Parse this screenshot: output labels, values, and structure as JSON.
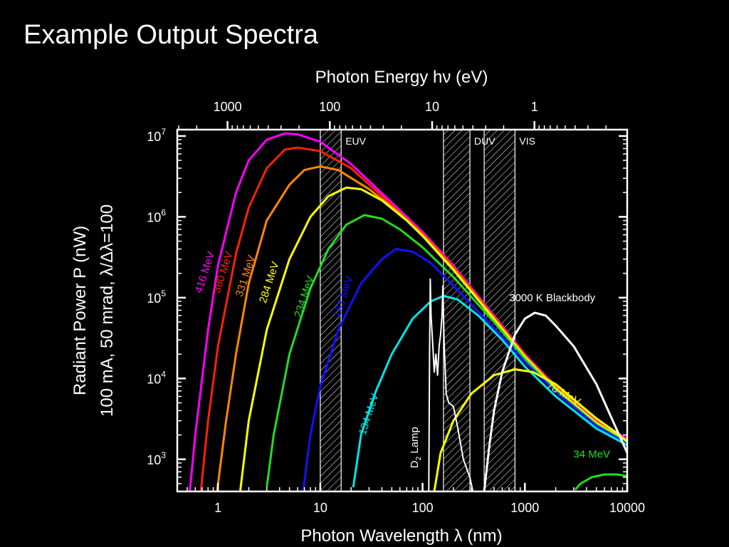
{
  "slide": {
    "title": "Example Output Spectra"
  },
  "chart_data": {
    "type": "line",
    "title": "",
    "xlabel": "Photon Wavelength λ (nm)",
    "x2label": "Photon Energy hν (eV)",
    "ylabel_line1": "Radiant Power P (nW)",
    "ylabel_line2": "100 mA, 50 mrad, λ/Δλ=100",
    "xscale": "log",
    "yscale": "log",
    "xlim": [
      0.4,
      10000
    ],
    "ylim": [
      400,
      12000000
    ],
    "x_ticks": [
      {
        "value": 1,
        "label": "1"
      },
      {
        "value": 10,
        "label": "10"
      },
      {
        "value": 100,
        "label": "100"
      },
      {
        "value": 1000,
        "label": "1000"
      },
      {
        "value": 10000,
        "label": "10000"
      }
    ],
    "x2_ticks": [
      {
        "value": 1000,
        "label": "1000"
      },
      {
        "value": 100,
        "label": "100"
      },
      {
        "value": 10,
        "label": "10"
      },
      {
        "value": 1,
        "label": "1"
      }
    ],
    "y_ticks": [
      {
        "value": 1000,
        "base": "10",
        "exp": "3"
      },
      {
        "value": 10000,
        "base": "10",
        "exp": "4"
      },
      {
        "value": 100000,
        "base": "10",
        "exp": "5"
      },
      {
        "value": 1000000,
        "base": "10",
        "exp": "6"
      },
      {
        "value": 10000000,
        "base": "10",
        "exp": "7"
      }
    ],
    "bands": [
      {
        "name": "EUV",
        "from": 10,
        "to": 16
      },
      {
        "name": "DUV",
        "from": 160,
        "to": 290
      },
      {
        "name": "VIS",
        "from": 400,
        "to": 800
      }
    ],
    "series": [
      {
        "name": "416 MeV",
        "color": "#ff00ff",
        "points": [
          [
            0.53,
            400
          ],
          [
            0.6,
            2000
          ],
          [
            0.8,
            40000
          ],
          [
            1,
            250000
          ],
          [
            1.5,
            2000000
          ],
          [
            2,
            5000000
          ],
          [
            3,
            9000000
          ],
          [
            4.5,
            10800000
          ],
          [
            6,
            10500000
          ],
          [
            10,
            8500000
          ],
          [
            20,
            4500000
          ],
          [
            50,
            1500000
          ],
          [
            100,
            650000
          ],
          [
            200,
            250000
          ],
          [
            500,
            60000
          ],
          [
            1000,
            20000
          ],
          [
            2000,
            8000
          ],
          [
            5000,
            3000
          ],
          [
            10000,
            1800
          ]
        ]
      },
      {
        "name": "380 MeV",
        "color": "#ff2200",
        "points": [
          [
            0.68,
            400
          ],
          [
            0.8,
            3000
          ],
          [
            1,
            25000
          ],
          [
            1.5,
            350000
          ],
          [
            2,
            1300000
          ],
          [
            3,
            4000000
          ],
          [
            4.5,
            6800000
          ],
          [
            6,
            7200000
          ],
          [
            10,
            6500000
          ],
          [
            20,
            4000000
          ],
          [
            50,
            1400000
          ],
          [
            100,
            620000
          ],
          [
            200,
            240000
          ],
          [
            500,
            58000
          ],
          [
            1000,
            19500
          ],
          [
            2000,
            7800
          ],
          [
            5000,
            2900
          ],
          [
            10000,
            1750
          ]
        ]
      },
      {
        "name": "331 MeV",
        "color": "#ff8800",
        "points": [
          [
            0.98,
            400
          ],
          [
            1.2,
            3000
          ],
          [
            1.5,
            20000
          ],
          [
            2,
            150000
          ],
          [
            3,
            900000
          ],
          [
            5,
            2500000
          ],
          [
            7,
            3800000
          ],
          [
            10,
            4200000
          ],
          [
            15,
            3800000
          ],
          [
            30,
            2200000
          ],
          [
            60,
            1100000
          ],
          [
            100,
            600000
          ],
          [
            200,
            230000
          ],
          [
            500,
            56000
          ],
          [
            1000,
            19000
          ],
          [
            2000,
            7600
          ],
          [
            5000,
            2850
          ],
          [
            10000,
            1700
          ]
        ]
      },
      {
        "name": "284 MeV",
        "color": "#ffff00",
        "points": [
          [
            1.65,
            400
          ],
          [
            2,
            3000
          ],
          [
            3,
            40000
          ],
          [
            5,
            300000
          ],
          [
            8,
            1000000
          ],
          [
            12,
            1800000
          ],
          [
            18,
            2300000
          ],
          [
            25,
            2200000
          ],
          [
            40,
            1600000
          ],
          [
            70,
            900000
          ],
          [
            100,
            580000
          ],
          [
            200,
            220000
          ],
          [
            500,
            54000
          ],
          [
            1000,
            18500
          ],
          [
            2000,
            7400
          ],
          [
            5000,
            2800
          ],
          [
            10000,
            1650
          ]
        ]
      },
      {
        "name": "234 MeV",
        "color": "#22dd22",
        "points": [
          [
            3,
            450
          ],
          [
            3.5,
            2000
          ],
          [
            5,
            20000
          ],
          [
            8,
            130000
          ],
          [
            12,
            400000
          ],
          [
            18,
            800000
          ],
          [
            27,
            1050000
          ],
          [
            40,
            950000
          ],
          [
            60,
            700000
          ],
          [
            100,
            420000
          ],
          [
            200,
            180000
          ],
          [
            500,
            50000
          ],
          [
            1000,
            17500
          ],
          [
            2000,
            7100
          ],
          [
            5000,
            2700
          ],
          [
            10000,
            1600
          ]
        ]
      },
      {
        "name": "183 MeV",
        "color": "#1111ff",
        "points": [
          [
            6.8,
            400
          ],
          [
            8,
            2000
          ],
          [
            10,
            8000
          ],
          [
            15,
            40000
          ],
          [
            25,
            150000
          ],
          [
            40,
            300000
          ],
          [
            55,
            400000
          ],
          [
            80,
            370000
          ],
          [
            120,
            270000
          ],
          [
            200,
            140000
          ],
          [
            500,
            42000
          ],
          [
            1000,
            16000
          ],
          [
            2000,
            6800
          ],
          [
            5000,
            2600
          ],
          [
            10000,
            1550
          ]
        ]
      },
      {
        "name": "134 MeV",
        "color": "#00e5e5",
        "points": [
          [
            21,
            450
          ],
          [
            25,
            2000
          ],
          [
            35,
            7000
          ],
          [
            50,
            20000
          ],
          [
            80,
            55000
          ],
          [
            120,
            90000
          ],
          [
            160,
            105000
          ],
          [
            220,
            95000
          ],
          [
            350,
            60000
          ],
          [
            600,
            30000
          ],
          [
            1000,
            14000
          ],
          [
            2000,
            6000
          ],
          [
            5000,
            2400
          ],
          [
            10000,
            1500
          ]
        ]
      },
      {
        "name": "78 MeV",
        "color": "#ffff00",
        "points": [
          [
            130,
            400
          ],
          [
            150,
            1200
          ],
          [
            200,
            3000
          ],
          [
            300,
            6500
          ],
          [
            500,
            11000
          ],
          [
            800,
            13000
          ],
          [
            1200,
            12000
          ],
          [
            2000,
            8500
          ],
          [
            3000,
            5500
          ],
          [
            5000,
            3200
          ],
          [
            8000,
            2100
          ],
          [
            10000,
            1650
          ]
        ]
      },
      {
        "name": "34 MeV",
        "color": "#22dd22",
        "points": [
          [
            3100,
            420
          ],
          [
            3500,
            500
          ],
          [
            4500,
            600
          ],
          [
            6000,
            650
          ],
          [
            8000,
            650
          ],
          [
            10000,
            620
          ]
        ]
      },
      {
        "name": "3000 K Blackbody",
        "color": "#ffffff",
        "points": [
          [
            400,
            400
          ],
          [
            450,
            1500
          ],
          [
            500,
            4000
          ],
          [
            600,
            12000
          ],
          [
            800,
            35000
          ],
          [
            1000,
            55000
          ],
          [
            1250,
            65000
          ],
          [
            1600,
            60000
          ],
          [
            2000,
            45000
          ],
          [
            3000,
            25000
          ],
          [
            5000,
            8500
          ],
          [
            10000,
            1200
          ]
        ]
      },
      {
        "name": "D2 Lamp",
        "color": "#ffffff",
        "points": [
          [
            115,
            400
          ],
          [
            117,
            20000
          ],
          [
            119,
            170000
          ],
          [
            121,
            60000
          ],
          [
            125,
            30000
          ],
          [
            130,
            12000
          ],
          [
            135,
            20000
          ],
          [
            140,
            11000
          ],
          [
            145,
            25000
          ],
          [
            150,
            35000
          ],
          [
            155,
            60000
          ],
          [
            158,
            140000
          ],
          [
            162,
            30000
          ],
          [
            170,
            6500
          ],
          [
            180,
            5000
          ],
          [
            200,
            4500
          ],
          [
            220,
            2500
          ],
          [
            250,
            1000
          ],
          [
            290,
            600
          ],
          [
            310,
            400
          ]
        ]
      }
    ],
    "annotations": [
      {
        "text": "416 MeV",
        "color": "#ff00ff",
        "x": 0.8,
        "y": 200000,
        "rotate": -72
      },
      {
        "text": "380 MeV",
        "color": "#ff2200",
        "x": 1.2,
        "y": 200000,
        "rotate": -72
      },
      {
        "text": "331 MeV",
        "color": "#ff8800",
        "x": 2.0,
        "y": 180000,
        "rotate": -72
      },
      {
        "text": "284 MeV",
        "color": "#ffff00",
        "x": 3.4,
        "y": 150000,
        "rotate": -72
      },
      {
        "text": "234 MeV",
        "color": "#22dd22",
        "x": 7.5,
        "y": 100000,
        "rotate": -72
      },
      {
        "text": "183 MeV",
        "color": "#1111ff",
        "x": 18,
        "y": 100000,
        "rotate": -72
      },
      {
        "text": "134 MeV",
        "color": "#00e5e5",
        "x": 32,
        "y": 3500,
        "rotate": -72
      },
      {
        "text": "78 MeV",
        "color": "#ffff00",
        "x": 2300,
        "y": 6000,
        "rotate": 30
      },
      {
        "text": "34 MeV",
        "color": "#22dd22",
        "x": 4500,
        "y": 1050,
        "rotate": 0
      },
      {
        "text": "3000 K Blackbody",
        "color": "#ffffff",
        "x": 1850,
        "y": 90000,
        "rotate": 0
      }
    ],
    "d2_label": {
      "main": "D",
      "sub": "2",
      "rest": " Lamp",
      "x": 90,
      "y": 1400
    }
  }
}
